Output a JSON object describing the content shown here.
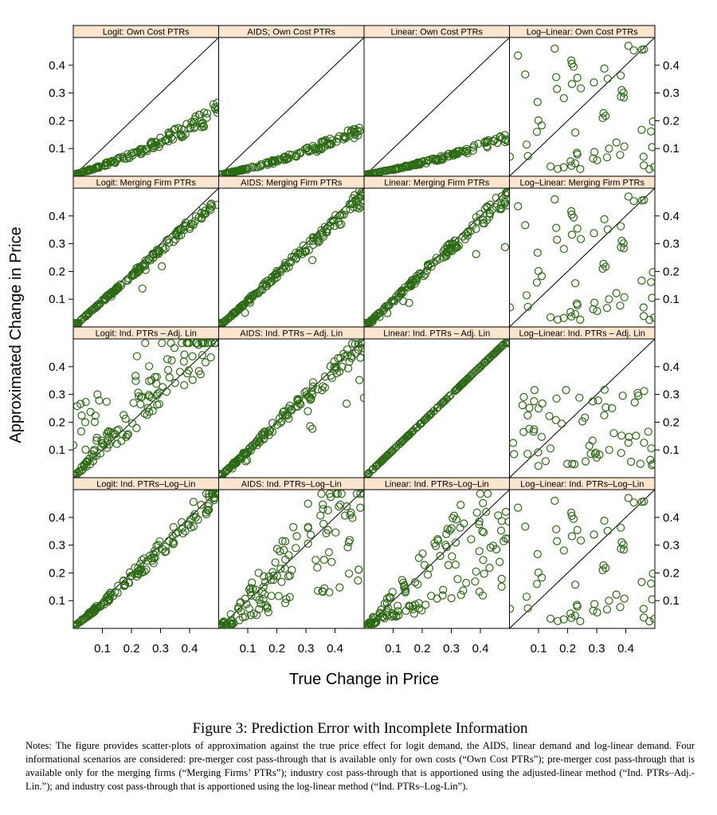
{
  "chart_data": {
    "type": "scatter",
    "layout": "4 columns x 4 rows of panels",
    "xlabel": "True Change in Price",
    "ylabel": "Approximated Change in Price",
    "xlim": [
      0,
      0.5
    ],
    "ylim": [
      0,
      0.5
    ],
    "x_ticks": [
      "0.1",
      "0.2",
      "0.3",
      "0.4"
    ],
    "y_ticks": [
      "0.1",
      "0.2",
      "0.3",
      "0.4"
    ],
    "reference_line": "45-degree line y = x",
    "marker": "open circle",
    "marker_color": "#2d6a15",
    "strip_color": "#fce5cf",
    "panels": [
      {
        "title": "Logit: Own Cost PTRs",
        "gen": {
          "seed": 11,
          "n": 160,
          "mode": "under",
          "a": 0.3,
          "b": 0.55,
          "s": 0.15
        }
      },
      {
        "title": "AIDS; Own Cost PTRs",
        "gen": {
          "seed": 12,
          "n": 160,
          "mode": "under",
          "a": 0.2,
          "b": 0.45,
          "s": 0.15
        }
      },
      {
        "title": "Linear: Own Cost PTRs",
        "gen": {
          "seed": 13,
          "n": 160,
          "mode": "under",
          "a": 0.18,
          "b": 0.32,
          "s": 0.12
        }
      },
      {
        "title": "Log–Linear: Own Cost PTRs",
        "gen": {
          "seed": 14,
          "n": 60,
          "mode": "random",
          "a": 0,
          "b": 0,
          "s": 0
        }
      },
      {
        "title": "Logit: Merging Firm PTRs",
        "gen": {
          "seed": 21,
          "n": 170,
          "mode": "tight",
          "a": 0.93,
          "b": 0,
          "s": 0.05
        }
      },
      {
        "title": "AIDS: Merging Firm PTRs",
        "gen": {
          "seed": 22,
          "n": 170,
          "mode": "tight",
          "a": 0.95,
          "b": 0,
          "s": 0.07
        }
      },
      {
        "title": "Linear: Merging Firm PTRs",
        "gen": {
          "seed": 23,
          "n": 170,
          "mode": "tight",
          "a": 0.96,
          "b": 0,
          "s": 0.07
        }
      },
      {
        "title": "Log–Linear: Merging Firm PTRs",
        "gen": {
          "seed": 14,
          "n": 60,
          "mode": "random",
          "a": 0,
          "b": 0,
          "s": 0
        }
      },
      {
        "title": "Logit: Ind. PTRs – Adj. Lin",
        "gen": {
          "seed": 31,
          "n": 150,
          "mode": "over",
          "a": 1.1,
          "b": 0,
          "s": 0.22
        }
      },
      {
        "title": "AIDS: Ind. PTRs – Adj. Lin",
        "gen": {
          "seed": 32,
          "n": 160,
          "mode": "tight",
          "a": 0.97,
          "b": 0,
          "s": 0.1
        }
      },
      {
        "title": "Linear: Ind. PTRs – Adj. Lin",
        "gen": {
          "seed": 33,
          "n": 170,
          "mode": "exact",
          "a": 1,
          "b": 0,
          "s": 0.004
        }
      },
      {
        "title": "Log–Linear: Ind. PTRs – Adj. Lin",
        "gen": {
          "seed": 34,
          "n": 65,
          "mode": "cloud",
          "a": 0,
          "b": 0,
          "s": 0
        }
      },
      {
        "title": "Logit: Ind. PTRs–Log–Lin",
        "gen": {
          "seed": 41,
          "n": 150,
          "mode": "under",
          "a": 0.82,
          "b": 0.7,
          "s": 0.12
        }
      },
      {
        "title": "AIDS: Ind. PTRs–Log–Lin",
        "gen": {
          "seed": 42,
          "n": 140,
          "mode": "spread",
          "a": 0.8,
          "b": 0,
          "s": 0.3
        }
      },
      {
        "title": "Linear: Ind. PTRs–Log–Lin",
        "gen": {
          "seed": 43,
          "n": 140,
          "mode": "spread",
          "a": 0.72,
          "b": 0,
          "s": 0.22
        }
      },
      {
        "title": "Log–Linear: Ind. PTRs–Log–Lin",
        "gen": {
          "seed": 14,
          "n": 60,
          "mode": "random",
          "a": 0,
          "b": 0,
          "s": 0
        }
      }
    ]
  },
  "caption": {
    "title": "Figure 3: Prediction Error with Incomplete Information",
    "notes": "Notes: The figure provides scatter-plots of approximation against the true price effect for logit demand, the AIDS, linear demand and log-linear demand. Four informational scenarios are considered: pre-merger cost pass-through that is available only for own costs (“Own Cost PTRs”); pre-merger cost pass-through that is available only for the merging firms (“Merging Firms’ PTRs”); industry cost pass-through that is apportioned using the adjusted-linear method (“Ind. PTRs–Adj.-Lin.”); and industry cost pass-through that is apportioned using the log-linear method (“Ind. PTRs–Log-Lin”)."
  }
}
